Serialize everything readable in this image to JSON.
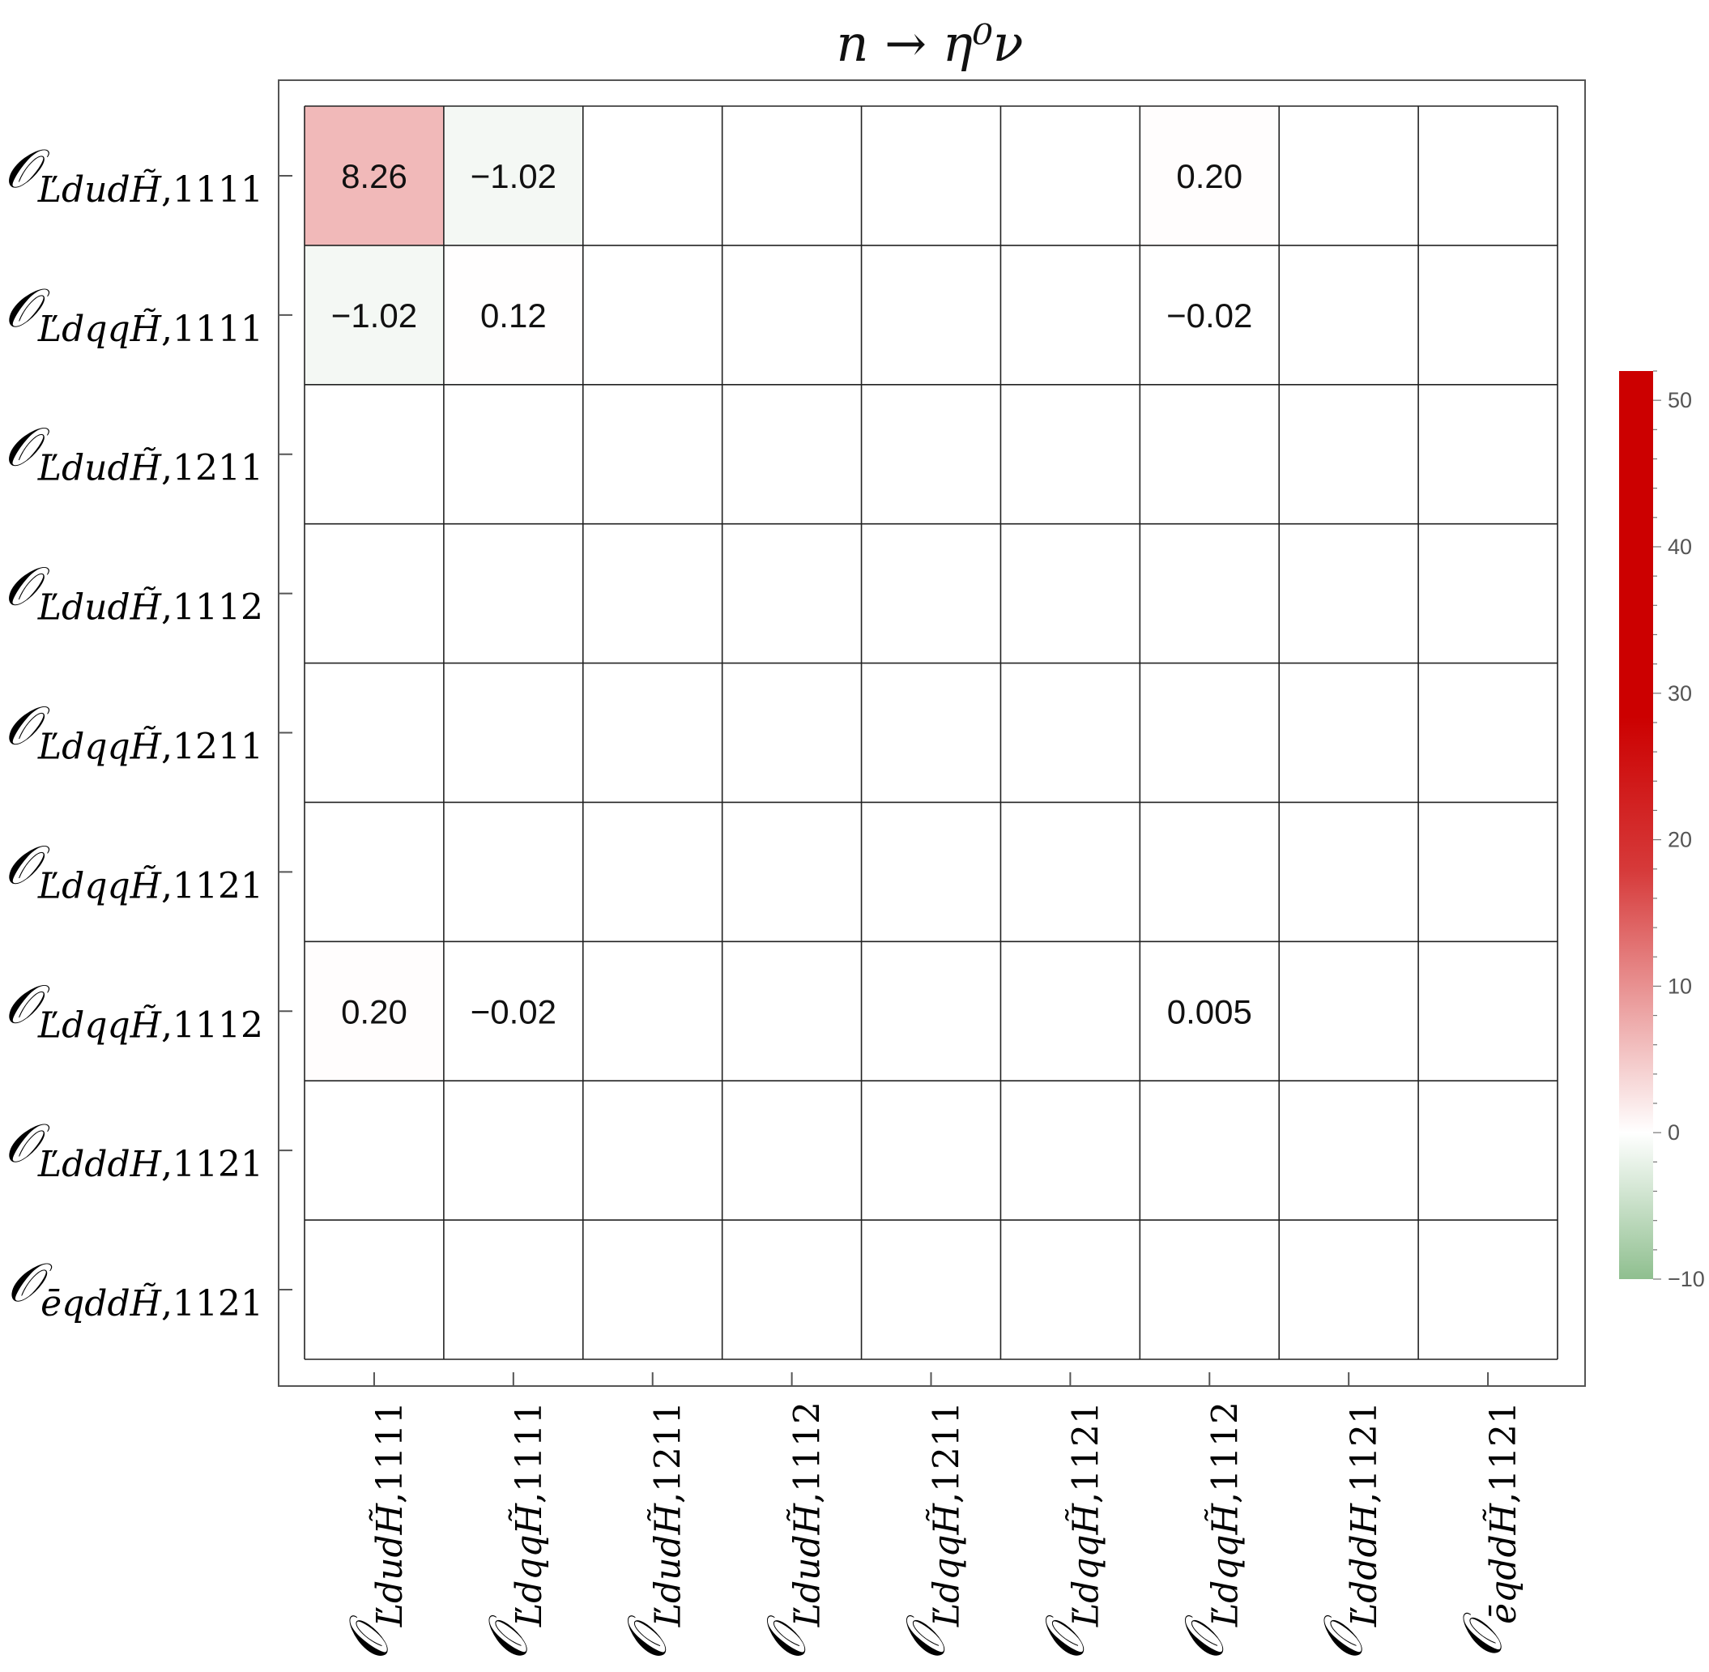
{
  "chart_data": {
    "type": "heatmap",
    "title": "n → η⁰ν",
    "row_labels": [
      {
        "sub": "ĽdudH̃",
        "idx": "1111"
      },
      {
        "sub": "ĽdqqH̃",
        "idx": "1111"
      },
      {
        "sub": "ĽdudH̃",
        "idx": "1211"
      },
      {
        "sub": "ĽdudH̃",
        "idx": "1112"
      },
      {
        "sub": "ĽdqqH̃",
        "idx": "1211"
      },
      {
        "sub": "ĽdqqH̃",
        "idx": "1121"
      },
      {
        "sub": "ĽdqqH̃",
        "idx": "1112"
      },
      {
        "sub": "ĽdddH",
        "idx": "1121"
      },
      {
        "sub": "ēqddH̃",
        "idx": "1121"
      }
    ],
    "col_labels": [
      {
        "sub": "ĽdudH̃",
        "idx": "1111"
      },
      {
        "sub": "ĽdqqH̃",
        "idx": "1111"
      },
      {
        "sub": "ĽdudH̃",
        "idx": "1211"
      },
      {
        "sub": "ĽdudH̃",
        "idx": "1112"
      },
      {
        "sub": "ĽdqqH̃",
        "idx": "1211"
      },
      {
        "sub": "ĽdqqH̃",
        "idx": "1121"
      },
      {
        "sub": "ĽdqqH̃",
        "idx": "1112"
      },
      {
        "sub": "ĽdddH",
        "idx": "1121"
      },
      {
        "sub": "ēqddH̃",
        "idx": "1121"
      }
    ],
    "cells": [
      {
        "row": 0,
        "col": 0,
        "value": 8.26,
        "label": "8.26"
      },
      {
        "row": 0,
        "col": 1,
        "value": -1.02,
        "label": "−1.02"
      },
      {
        "row": 0,
        "col": 6,
        "value": 0.2,
        "label": "0.20"
      },
      {
        "row": 1,
        "col": 0,
        "value": -1.02,
        "label": "−1.02"
      },
      {
        "row": 1,
        "col": 1,
        "value": 0.12,
        "label": "0.12"
      },
      {
        "row": 1,
        "col": 6,
        "value": -0.02,
        "label": "−0.02"
      },
      {
        "row": 6,
        "col": 0,
        "value": 0.2,
        "label": "0.20"
      },
      {
        "row": 6,
        "col": 1,
        "value": -0.02,
        "label": "−0.02"
      },
      {
        "row": 6,
        "col": 6,
        "value": 0.005,
        "label": "0.005"
      }
    ],
    "colorbar": {
      "range": [
        -10,
        52
      ],
      "ticks": [
        -10,
        0,
        10,
        20,
        30,
        40,
        50
      ],
      "tick_labels": [
        "−10",
        "0",
        "10",
        "20",
        "30",
        "40",
        "50"
      ],
      "colors": {
        "negative": "#8fbf8f",
        "zero": "#ffffff",
        "positive": "#cc0000"
      }
    }
  }
}
